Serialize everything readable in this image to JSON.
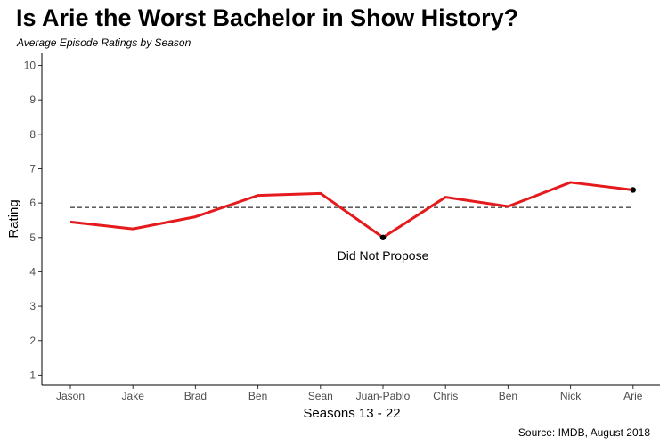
{
  "chart_data": {
    "type": "line",
    "title": "Is Arie the Worst Bachelor in Show History?",
    "subtitle": "Average Episode Ratings by Season",
    "xlabel": "Seasons 13 - 22",
    "ylabel": "Rating",
    "caption": "Source: IMDB, August 2018",
    "categories": [
      "Jason",
      "Jake",
      "Brad",
      "Ben",
      "Sean",
      "Juan-Pablo",
      "Chris",
      "Ben",
      "Nick",
      "Arie"
    ],
    "values": [
      5.45,
      5.25,
      5.6,
      6.22,
      6.28,
      5.0,
      6.17,
      5.9,
      6.6,
      6.38
    ],
    "yticks": [
      1,
      2,
      3,
      4,
      5,
      6,
      7,
      8,
      9,
      10
    ],
    "ylim": [
      0.7,
      10.35
    ],
    "average_line": 5.87,
    "highlighted_points": [
      5,
      9
    ],
    "annotation": {
      "text": "Did Not Propose",
      "category_index": 5
    },
    "grid": false,
    "colors": {
      "line": "#e41a1c",
      "average": "#000000",
      "points": "#000000"
    }
  }
}
